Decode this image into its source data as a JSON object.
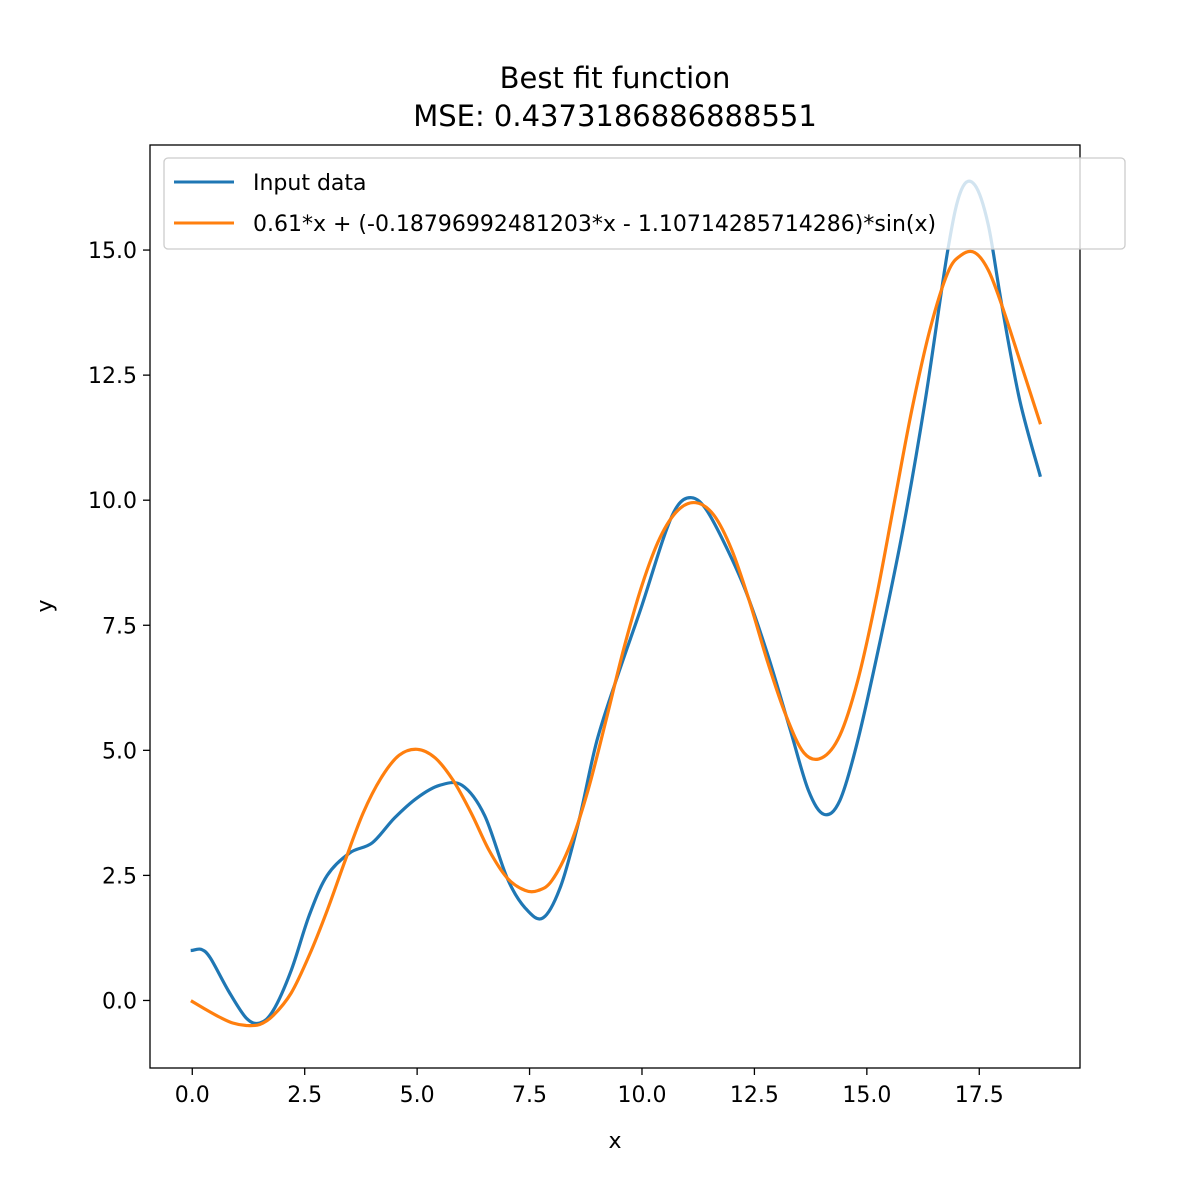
{
  "chart_data": {
    "type": "line",
    "title": "Best fit function",
    "subtitle": "MSE: 0.4373186886888551",
    "xlabel": "x",
    "ylabel": "y",
    "xlim": [
      -0.94,
      19.74
    ],
    "ylim": [
      -1.35,
      17.1
    ],
    "xticks": [
      0.0,
      2.5,
      5.0,
      7.5,
      10.0,
      12.5,
      15.0,
      17.5
    ],
    "xtick_labels": [
      "0.0",
      "2.5",
      "5.0",
      "7.5",
      "10.0",
      "12.5",
      "15.0",
      "17.5"
    ],
    "yticks": [
      0.0,
      2.5,
      5.0,
      7.5,
      10.0,
      12.5,
      15.0
    ],
    "ytick_labels": [
      "0.0",
      "2.5",
      "5.0",
      "7.5",
      "10.0",
      "12.5",
      "15.0"
    ],
    "grid": false,
    "legend_position": "top-left",
    "series": [
      {
        "name": "Input data",
        "color": "#1f77b4",
        "x": [
          0.0,
          0.2,
          0.4,
          0.8,
          1.2,
          1.5,
          1.8,
          2.2,
          2.6,
          3.0,
          3.5,
          4.0,
          4.5,
          5.0,
          5.5,
          6.0,
          6.5,
          7.0,
          7.4,
          7.8,
          8.2,
          8.6,
          9.0,
          9.5,
          10.0,
          10.5,
          10.8,
          11.1,
          11.4,
          11.8,
          12.3,
          12.8,
          13.3,
          13.7,
          14.05,
          14.4,
          14.8,
          15.3,
          15.8,
          16.3,
          16.8,
          17.1,
          17.4,
          17.7,
          18.0,
          18.4,
          18.85
        ],
        "y": [
          1.0,
          1.02,
          0.85,
          0.2,
          -0.35,
          -0.45,
          -0.2,
          0.6,
          1.7,
          2.5,
          2.95,
          3.15,
          3.65,
          4.05,
          4.3,
          4.3,
          3.7,
          2.45,
          1.85,
          1.65,
          2.3,
          3.6,
          5.2,
          6.6,
          7.9,
          9.3,
          9.9,
          10.05,
          9.85,
          9.2,
          8.2,
          6.9,
          5.4,
          4.2,
          3.72,
          4.0,
          5.2,
          7.2,
          9.4,
          12.0,
          15.0,
          16.2,
          16.3,
          15.5,
          13.9,
          12.0,
          10.5
        ]
      },
      {
        "name": "0.61*x + (-0.18796992481203*x - 1.10714285714286)*sin(x)",
        "color": "#ff7f0e",
        "x": [
          0.0,
          0.3,
          0.6,
          0.9,
          1.2,
          1.5,
          1.8,
          2.2,
          2.6,
          3.0,
          3.4,
          3.8,
          4.2,
          4.6,
          5.0,
          5.4,
          5.8,
          6.2,
          6.6,
          7.0,
          7.4,
          7.7,
          8.0,
          8.4,
          8.8,
          9.2,
          9.6,
          10.0,
          10.4,
          10.8,
          11.2,
          11.6,
          12.0,
          12.4,
          12.8,
          13.2,
          13.6,
          14.0,
          14.4,
          14.8,
          15.2,
          15.6,
          16.0,
          16.4,
          16.8,
          17.1,
          17.4,
          17.7,
          18.0,
          18.4,
          18.85
        ],
        "y": [
          -0.02,
          -0.18,
          -0.33,
          -0.45,
          -0.5,
          -0.48,
          -0.3,
          0.15,
          0.9,
          1.8,
          2.8,
          3.75,
          4.45,
          4.9,
          5.02,
          4.85,
          4.4,
          3.75,
          3.0,
          2.45,
          2.2,
          2.2,
          2.4,
          3.1,
          4.2,
          5.6,
          7.05,
          8.3,
          9.25,
          9.8,
          9.95,
          9.7,
          9.0,
          7.95,
          6.75,
          5.7,
          4.95,
          4.85,
          5.3,
          6.4,
          8.0,
          9.9,
          11.8,
          13.4,
          14.55,
          14.9,
          14.95,
          14.6,
          13.9,
          12.8,
          11.55
        ]
      }
    ]
  }
}
